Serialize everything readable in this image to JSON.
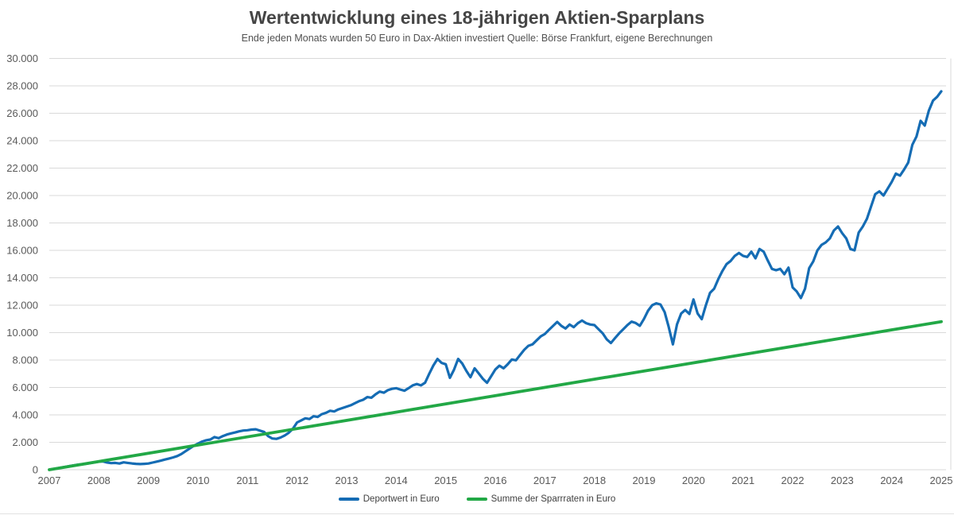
{
  "chart_data": {
    "type": "line",
    "title": "Wertentwicklung eines 18-jährigen Aktien-Sparplans",
    "subtitle": "Ende jeden Monats wurden 50 Euro in Dax-Aktien investiert Quelle: Börse Frankfurt, eigene Berechnungen",
    "grid": "horizontal",
    "legend_position": "bottom",
    "x_axis": {
      "start_year": 2007,
      "end_year": 2025,
      "points_per_year": 12,
      "tick_labels": [
        "2007",
        "2008",
        "2009",
        "2010",
        "2011",
        "2012",
        "2013",
        "2014",
        "2015",
        "2016",
        "2017",
        "2018",
        "2019",
        "2020",
        "2021",
        "2022",
        "2023",
        "2024",
        "2025"
      ]
    },
    "y_axis": {
      "min": 0,
      "max": 30000,
      "step": 2000,
      "tick_labels": [
        "0",
        "2.000",
        "4.000",
        "6.000",
        "8.000",
        "10.000",
        "12.000",
        "14.000",
        "16.000",
        "18.000",
        "20.000",
        "22.000",
        "24.000",
        "26.000",
        "28.000",
        "30.000"
      ]
    },
    "series": [
      {
        "name": "Deportwert in Euro",
        "color": "#156cb4",
        "unit": "EUR",
        "frequency": "monthly",
        "values": [
          0,
          50,
          105,
          160,
          215,
          270,
          320,
          370,
          400,
          440,
          490,
          540,
          590,
          600,
          530,
          480,
          500,
          450,
          540,
          500,
          460,
          430,
          410,
          430,
          450,
          520,
          590,
          660,
          740,
          820,
          900,
          1000,
          1150,
          1350,
          1550,
          1750,
          1900,
          2050,
          2150,
          2200,
          2380,
          2300,
          2450,
          2570,
          2650,
          2720,
          2800,
          2860,
          2880,
          2930,
          2950,
          2850,
          2760,
          2450,
          2280,
          2250,
          2350,
          2500,
          2700,
          3000,
          3450,
          3600,
          3750,
          3700,
          3900,
          3850,
          4050,
          4150,
          4300,
          4250,
          4400,
          4500,
          4600,
          4700,
          4850,
          5000,
          5100,
          5300,
          5250,
          5500,
          5700,
          5620,
          5800,
          5900,
          5950,
          5850,
          5760,
          5950,
          6150,
          6250,
          6150,
          6350,
          7000,
          7600,
          8080,
          7790,
          7690,
          6700,
          7300,
          8080,
          7750,
          7210,
          6750,
          7400,
          7020,
          6630,
          6340,
          6820,
          7310,
          7590,
          7400,
          7690,
          8040,
          7980,
          8370,
          8750,
          9040,
          9140,
          9430,
          9720,
          9900,
          10200,
          10490,
          10780,
          10490,
          10300,
          10590,
          10400,
          10690,
          10880,
          10690,
          10590,
          10550,
          10250,
          9950,
          9500,
          9240,
          9600,
          9950,
          10250,
          10550,
          10800,
          10700,
          10500,
          11000,
          11600,
          12000,
          12140,
          12050,
          11500,
          10400,
          9140,
          10600,
          11400,
          11650,
          11360,
          12420,
          11400,
          10980,
          12000,
          12900,
          13200,
          13900,
          14500,
          15000,
          15230,
          15600,
          15810,
          15600,
          15520,
          15900,
          15420,
          16100,
          15900,
          15250,
          14650,
          14550,
          14650,
          14260,
          14740,
          13300,
          13000,
          12520,
          13200,
          14700,
          15200,
          16000,
          16400,
          16580,
          16870,
          17450,
          17740,
          17260,
          16870,
          16100,
          16000,
          17300,
          17740,
          18300,
          19200,
          20100,
          20300,
          20000,
          20500,
          21000,
          21600,
          21450,
          21900,
          22400,
          23700,
          24300,
          25450,
          25100,
          26200,
          26920,
          27200,
          27600
        ]
      },
      {
        "name": "Summe der Sparrraten in Euro",
        "color": "#22a846",
        "unit": "EUR",
        "shape": "linear",
        "monthly_rate": 50,
        "from": 0,
        "to": 10800
      }
    ],
    "colors": {
      "grid": "#d9d9d9",
      "plot_border": "#d9d9d9",
      "axis_text": "#595959",
      "title_text": "#454545",
      "subtitle_text": "#525252",
      "legend_text": "#404040"
    }
  }
}
